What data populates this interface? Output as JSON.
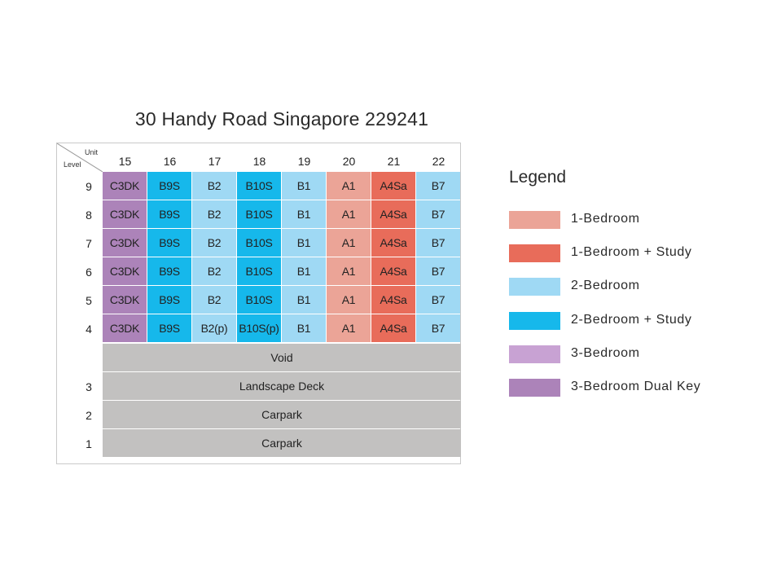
{
  "title": "30 Handy Road Singapore 229241",
  "corner": {
    "unit_label": "Unit",
    "level_label": "Level"
  },
  "columns": [
    "15",
    "16",
    "17",
    "18",
    "19",
    "20",
    "21",
    "22"
  ],
  "colors": {
    "1br": "#eba497",
    "1br_study": "#e86c5a",
    "2br": "#9fd9f4",
    "2br_study": "#16b8eb",
    "3br": "#c8a2d3",
    "3br_dk": "#ac83b9",
    "void": "#c2c1c0"
  },
  "unit_rows": [
    {
      "level": "9",
      "units": [
        {
          "label": "C3DK",
          "type": "3br_dk"
        },
        {
          "label": "B9S",
          "type": "2br_study"
        },
        {
          "label": "B2",
          "type": "2br"
        },
        {
          "label": "B10S",
          "type": "2br_study"
        },
        {
          "label": "B1",
          "type": "2br"
        },
        {
          "label": "A1",
          "type": "1br"
        },
        {
          "label": "A4Sa",
          "type": "1br_study"
        },
        {
          "label": "B7",
          "type": "2br"
        }
      ]
    },
    {
      "level": "8",
      "units": [
        {
          "label": "C3DK",
          "type": "3br_dk"
        },
        {
          "label": "B9S",
          "type": "2br_study"
        },
        {
          "label": "B2",
          "type": "2br"
        },
        {
          "label": "B10S",
          "type": "2br_study"
        },
        {
          "label": "B1",
          "type": "2br"
        },
        {
          "label": "A1",
          "type": "1br"
        },
        {
          "label": "A4Sa",
          "type": "1br_study"
        },
        {
          "label": "B7",
          "type": "2br"
        }
      ]
    },
    {
      "level": "7",
      "units": [
        {
          "label": "C3DK",
          "type": "3br_dk"
        },
        {
          "label": "B9S",
          "type": "2br_study"
        },
        {
          "label": "B2",
          "type": "2br"
        },
        {
          "label": "B10S",
          "type": "2br_study"
        },
        {
          "label": "B1",
          "type": "2br"
        },
        {
          "label": "A1",
          "type": "1br"
        },
        {
          "label": "A4Sa",
          "type": "1br_study"
        },
        {
          "label": "B7",
          "type": "2br"
        }
      ]
    },
    {
      "level": "6",
      "units": [
        {
          "label": "C3DK",
          "type": "3br_dk"
        },
        {
          "label": "B9S",
          "type": "2br_study"
        },
        {
          "label": "B2",
          "type": "2br"
        },
        {
          "label": "B10S",
          "type": "2br_study"
        },
        {
          "label": "B1",
          "type": "2br"
        },
        {
          "label": "A1",
          "type": "1br"
        },
        {
          "label": "A4Sa",
          "type": "1br_study"
        },
        {
          "label": "B7",
          "type": "2br"
        }
      ]
    },
    {
      "level": "5",
      "units": [
        {
          "label": "C3DK",
          "type": "3br_dk"
        },
        {
          "label": "B9S",
          "type": "2br_study"
        },
        {
          "label": "B2",
          "type": "2br"
        },
        {
          "label": "B10S",
          "type": "2br_study"
        },
        {
          "label": "B1",
          "type": "2br"
        },
        {
          "label": "A1",
          "type": "1br"
        },
        {
          "label": "A4Sa",
          "type": "1br_study"
        },
        {
          "label": "B7",
          "type": "2br"
        }
      ]
    },
    {
      "level": "4",
      "units": [
        {
          "label": "C3DK",
          "type": "3br_dk"
        },
        {
          "label": "B9S",
          "type": "2br_study"
        },
        {
          "label": "B2(p)",
          "type": "2br"
        },
        {
          "label": "B10S(p)",
          "type": "2br_study"
        },
        {
          "label": "B1",
          "type": "2br"
        },
        {
          "label": "A1",
          "type": "1br"
        },
        {
          "label": "A4Sa",
          "type": "1br_study"
        },
        {
          "label": "B7",
          "type": "2br"
        }
      ]
    }
  ],
  "span_rows": [
    {
      "level": "",
      "label": "Void"
    },
    {
      "level": "3",
      "label": "Landscape Deck"
    },
    {
      "level": "2",
      "label": "Carpark"
    },
    {
      "level": "1",
      "label": "Carpark"
    }
  ],
  "legend": {
    "title": "Legend",
    "items": [
      {
        "label": "1-Bedroom",
        "type": "1br"
      },
      {
        "label": "1-Bedroom + Study",
        "type": "1br_study"
      },
      {
        "label": "2-Bedroom",
        "type": "2br"
      },
      {
        "label": "2-Bedroom + Study",
        "type": "2br_study"
      },
      {
        "label": "3-Bedroom",
        "type": "3br"
      },
      {
        "label": "3-Bedroom Dual Key",
        "type": "3br_dk"
      }
    ]
  }
}
